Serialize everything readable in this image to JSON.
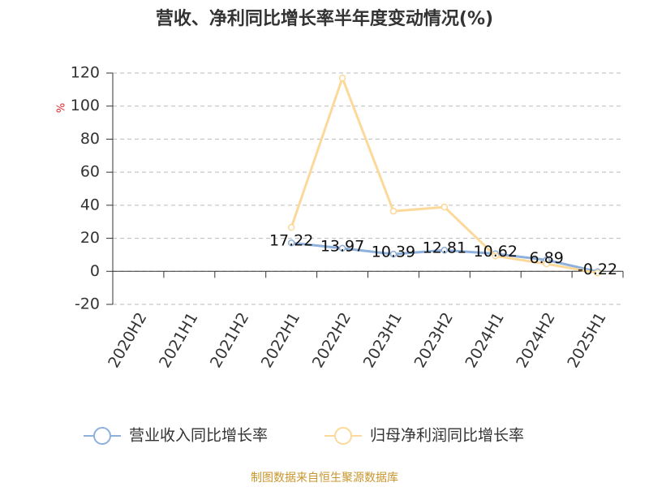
{
  "chart_data": {
    "type": "line",
    "title": "营收、净利同比增长率半年度变动情况(%)",
    "y_label": "%",
    "categories": [
      "2020H2",
      "2021H1",
      "2021H2",
      "2022H1",
      "2022H2",
      "2023H1",
      "2023H2",
      "2024H1",
      "2024H2",
      "2025H1"
    ],
    "series": [
      {
        "name": "营业收入同比增长率",
        "color": "#8eb0dc",
        "values": [
          null,
          null,
          null,
          17.22,
          13.97,
          10.39,
          12.81,
          10.62,
          6.89,
          -0.22
        ]
      },
      {
        "name": "归母净利润同比增长率",
        "color": "#fcd99a",
        "values": [
          null,
          null,
          null,
          26.6,
          117,
          36.4,
          38.9,
          9.3,
          4.5,
          -1
        ]
      }
    ],
    "ylim": [
      -20,
      120
    ],
    "yticks": [
      -20,
      0,
      20,
      40,
      60,
      80,
      100,
      120
    ],
    "grid": true,
    "source": "制图数据来自恒生聚源数据库"
  }
}
